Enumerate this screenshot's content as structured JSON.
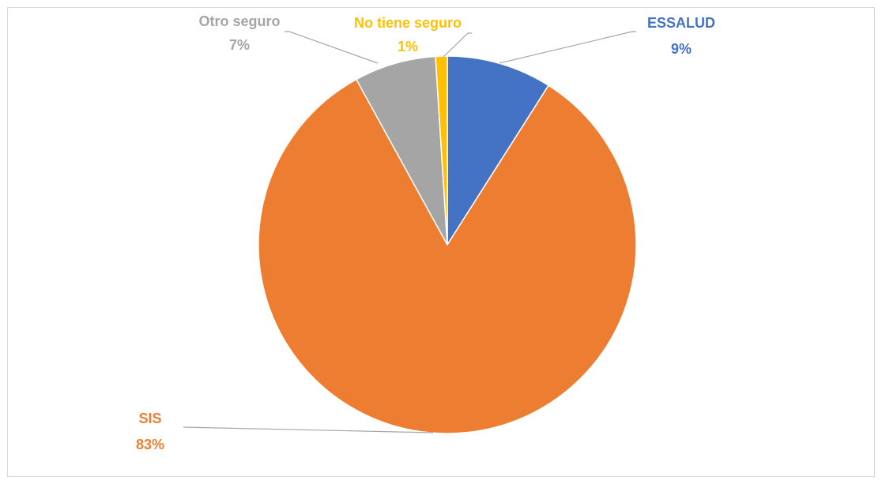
{
  "chart_data": {
    "type": "pie",
    "categories": [
      "ESSALUD",
      "SIS",
      "Otro seguro",
      "No tiene seguro"
    ],
    "values": [
      9,
      83,
      7,
      1
    ],
    "value_labels": [
      "9%",
      "83%",
      "7%",
      "1%"
    ],
    "colors": [
      "#4472c4",
      "#ed7d31",
      "#a5a5a5",
      "#ffc000"
    ]
  }
}
